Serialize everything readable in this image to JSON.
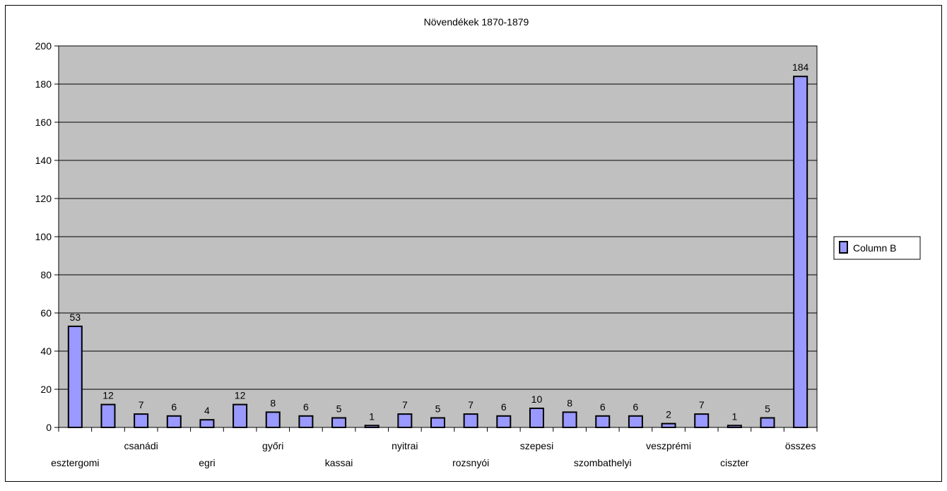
{
  "chart_data": {
    "type": "bar",
    "title": "Növendékek 1870-1879",
    "categories": [
      "esztergomi",
      "",
      "csanádi",
      "",
      "egri",
      "",
      "győri",
      "",
      "kassai",
      "",
      "nyitrai",
      "",
      "rozsnyói",
      "",
      "szepesi",
      "",
      "szombathelyi",
      "",
      "veszprémi",
      "",
      "ciszter",
      "",
      "összes"
    ],
    "series": [
      {
        "name": "Column B",
        "values": [
          53,
          12,
          7,
          6,
          4,
          12,
          8,
          6,
          5,
          1,
          7,
          5,
          7,
          6,
          10,
          8,
          6,
          6,
          2,
          7,
          1,
          5,
          184
        ],
        "color": "#9999ff"
      }
    ],
    "ylim": [
      0,
      200
    ],
    "yticks": [
      0,
      20,
      40,
      60,
      80,
      100,
      120,
      140,
      160,
      180,
      200
    ],
    "xlabel": "",
    "ylabel": "",
    "grid": true,
    "legend": "right",
    "plot_background": "#c0c0c0"
  }
}
